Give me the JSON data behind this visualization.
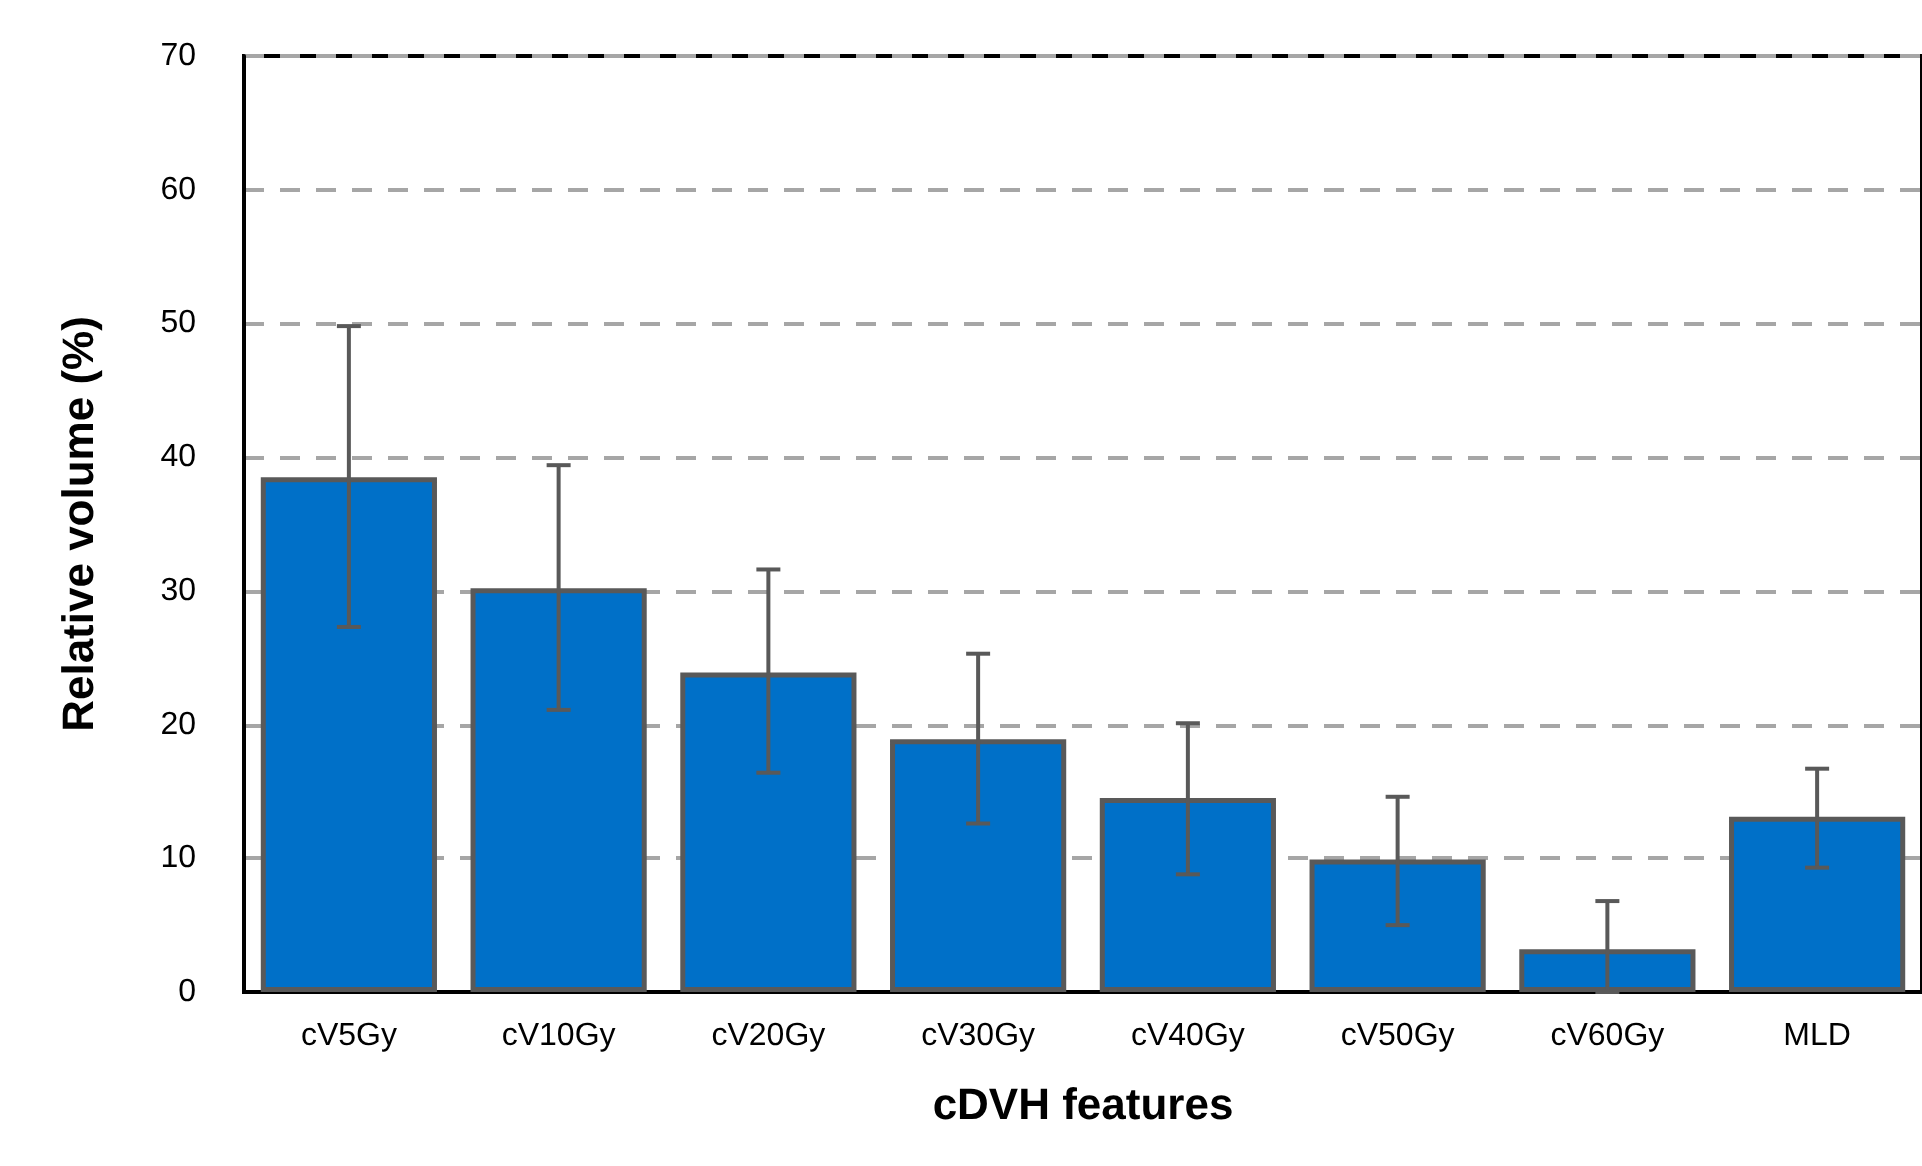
{
  "chart_data": {
    "type": "bar",
    "xlabel": "cDVH features",
    "ylabel": "Relative volume (%)",
    "categories": [
      "cV5Gy",
      "cV10Gy",
      "cV20Gy",
      "cV30Gy",
      "cV40Gy",
      "cV50Gy",
      "cV60Gy",
      "MLD"
    ],
    "values": [
      38.5,
      30.2,
      23.9,
      18.9,
      14.5,
      9.9,
      3.2,
      13.1
    ],
    "errors": [
      [
        27.3,
        49.8
      ],
      [
        21.1,
        39.4
      ],
      [
        16.4,
        31.6
      ],
      [
        12.6,
        25.3
      ],
      [
        8.8,
        20.1
      ],
      [
        5.0,
        14.6
      ],
      [
        0,
        6.8
      ],
      [
        9.3,
        16.7
      ]
    ],
    "color": "#0070c8",
    "ylim": [
      0,
      70
    ],
    "yticks": [
      0,
      10,
      20,
      30,
      40,
      50,
      60,
      70
    ],
    "grid": "y"
  }
}
